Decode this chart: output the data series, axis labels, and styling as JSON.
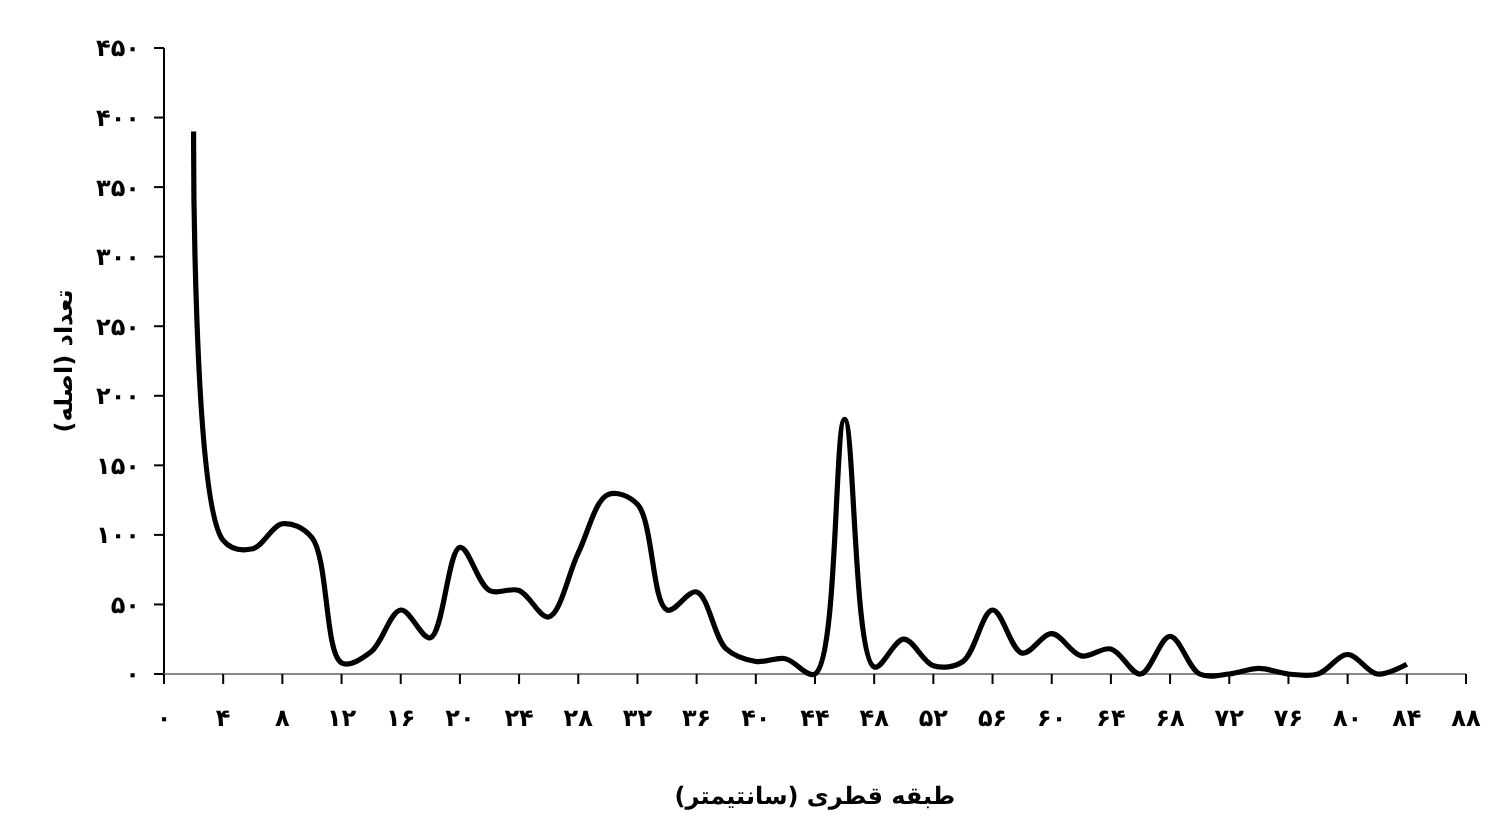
{
  "chart_data": {
    "type": "line",
    "xlabel": "طبقه قطری (سانتیمتر)",
    "ylabel": "تعداد (اصله)",
    "x": [
      2,
      4,
      6,
      8,
      10,
      12,
      14,
      16,
      18,
      20,
      22,
      24,
      26,
      28,
      30,
      32,
      34,
      36,
      38,
      40,
      42,
      44,
      46,
      48,
      50,
      52,
      54,
      56,
      58,
      60,
      62,
      64,
      66,
      68,
      70,
      72,
      74,
      76,
      78,
      80,
      82,
      84
    ],
    "series": [
      {
        "color": "#000000",
        "values": [
          390,
          96,
          90,
          108,
          98,
          8,
          16,
          46,
          26,
          91,
          60,
          60,
          41,
          87,
          129,
          122,
          46,
          59,
          18,
          9,
          11,
          0,
          183,
          5,
          25,
          6,
          9,
          46,
          15,
          29,
          13,
          18,
          0,
          27,
          0,
          0,
          4,
          0,
          0,
          14,
          0,
          7
        ]
      }
    ],
    "xlim": [
      0,
      88
    ],
    "ylim": [
      0,
      450
    ],
    "xticks": [
      {
        "value": 0,
        "label": "۰"
      },
      {
        "value": 4,
        "label": "۴"
      },
      {
        "value": 8,
        "label": "۸"
      },
      {
        "value": 12,
        "label": "۱۲"
      },
      {
        "value": 16,
        "label": "۱۶"
      },
      {
        "value": 20,
        "label": "۲۰"
      },
      {
        "value": 24,
        "label": "۲۴"
      },
      {
        "value": 28,
        "label": "۲۸"
      },
      {
        "value": 32,
        "label": "۳۲"
      },
      {
        "value": 36,
        "label": "۳۶"
      },
      {
        "value": 40,
        "label": "۴۰"
      },
      {
        "value": 44,
        "label": "۴۴"
      },
      {
        "value": 48,
        "label": "۴۸"
      },
      {
        "value": 52,
        "label": "۵۲"
      },
      {
        "value": 56,
        "label": "۵۶"
      },
      {
        "value": 60,
        "label": "۶۰"
      },
      {
        "value": 64,
        "label": "۶۴"
      },
      {
        "value": 68,
        "label": "۶۸"
      },
      {
        "value": 72,
        "label": "۷۲"
      },
      {
        "value": 76,
        "label": "۷۶"
      },
      {
        "value": 80,
        "label": "۸۰"
      },
      {
        "value": 84,
        "label": "۸۴"
      },
      {
        "value": 88,
        "label": "۸۸"
      }
    ],
    "yticks": [
      {
        "value": 0,
        "label": "۰"
      },
      {
        "value": 50,
        "label": "۵۰"
      },
      {
        "value": 100,
        "label": "۱۰۰"
      },
      {
        "value": 150,
        "label": "۱۵۰"
      },
      {
        "value": 200,
        "label": "۲۰۰"
      },
      {
        "value": 250,
        "label": "۲۵۰"
      },
      {
        "value": 300,
        "label": "۳۰۰"
      },
      {
        "value": 350,
        "label": "۳۵۰"
      },
      {
        "value": 400,
        "label": "۴۰۰"
      },
      {
        "value": 450,
        "label": "۴۵۰"
      }
    ],
    "grid": false,
    "marker": "none",
    "line_style": "solid"
  }
}
